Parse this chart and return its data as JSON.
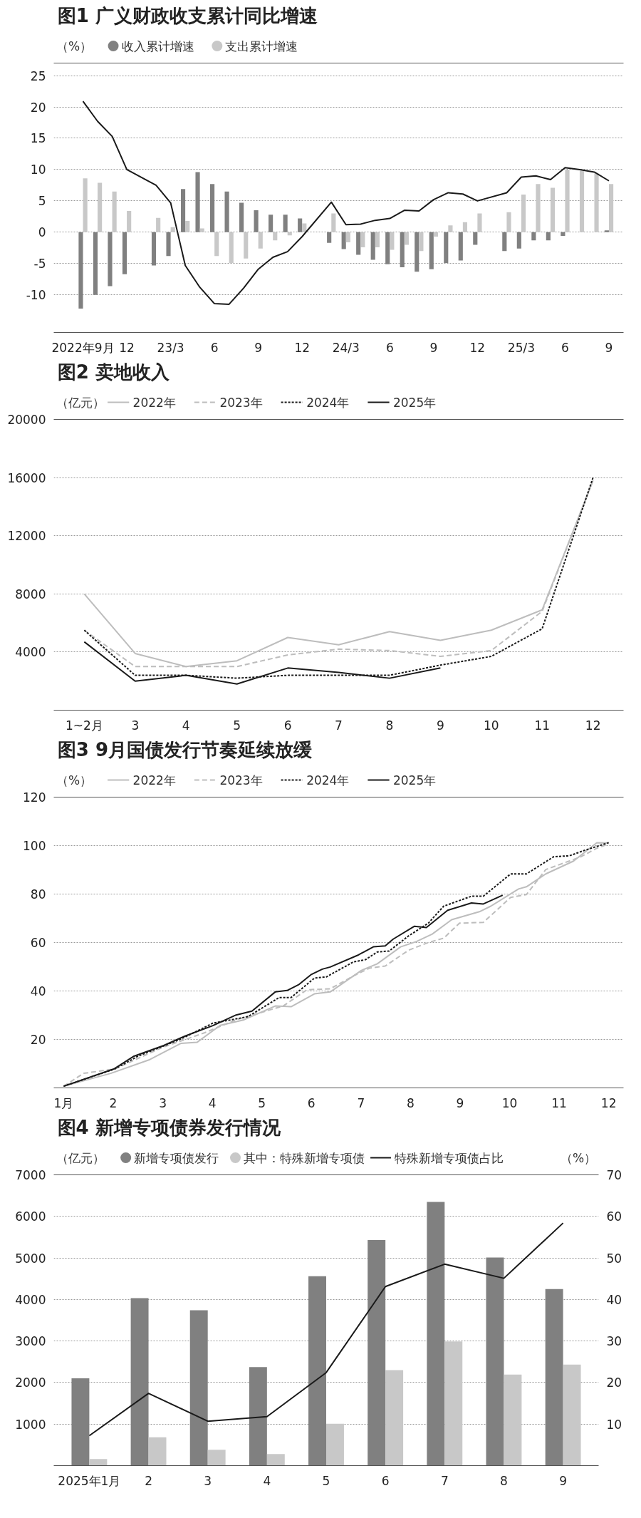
{
  "chart_data": [
    {
      "type": "bar",
      "title": "图1 广义财政收支累计同比增速",
      "ylabel": "（%）",
      "legend": "top left",
      "grid": "y",
      "x": [
        "2022-09",
        "2022-10",
        "2022-11",
        "2022-12",
        "2023-02",
        "2023-03",
        "2023-04",
        "2023-05",
        "2023-06",
        "2023-07",
        "2023-08",
        "2023-09",
        "2023-10",
        "2023-11",
        "2023-12",
        "2024-02",
        "2024-03",
        "2024-04",
        "2024-05",
        "2024-06",
        "2024-07",
        "2024-08",
        "2024-09",
        "2024-10",
        "2024-11",
        "2024-12",
        "2025-02",
        "2025-03",
        "2025-04",
        "2025-05",
        "2025-06",
        "2025-07",
        "2025-08",
        "2025-09"
      ],
      "xlim": [
        "2022-07",
        "2025-10"
      ],
      "xticks": [
        {
          "value": "2022-09",
          "label": "2022年9月"
        },
        {
          "value": "2022-12",
          "label": "12"
        },
        {
          "value": "2023-03",
          "label": "23/3"
        },
        {
          "value": "2023-06",
          "label": "6"
        },
        {
          "value": "2023-09",
          "label": "9"
        },
        {
          "value": "2023-12",
          "label": "12"
        },
        {
          "value": "2024-03",
          "label": "24/3"
        },
        {
          "value": "2024-06",
          "label": "6"
        },
        {
          "value": "2024-09",
          "label": "9"
        },
        {
          "value": "2024-12",
          "label": "12"
        },
        {
          "value": "2025-03",
          "label": "25/3"
        },
        {
          "value": "2025-06",
          "label": "6"
        },
        {
          "value": "2025-09",
          "label": "9"
        }
      ],
      "ylim": [
        -16,
        27
      ],
      "yticks": [
        -10,
        -5,
        0,
        5,
        10,
        15,
        20,
        25
      ],
      "series": [
        {
          "name": "收入累计增速",
          "type": "bar",
          "color": "#808080",
          "values": [
            -12.2,
            -10.0,
            -8.6,
            -6.7,
            -5.3,
            -3.8,
            6.9,
            9.6,
            7.7,
            6.5,
            4.7,
            3.5,
            2.8,
            2.8,
            2.2,
            -1.7,
            -2.7,
            -3.6,
            -4.4,
            -5.1,
            -5.6,
            -6.3,
            -5.9,
            -4.9,
            -4.5,
            -2.0,
            -3.0,
            -2.6,
            -1.3,
            -1.3,
            -0.6,
            0,
            0,
            0.3
          ]
        },
        {
          "name": "支出累计增速",
          "type": "bar",
          "color": "#c8c8c8",
          "values": [
            8.6,
            7.9,
            6.5,
            3.4,
            2.3,
            0.8,
            1.8,
            0.6,
            -3.8,
            -4.9,
            -4.2,
            -2.6,
            -1.3,
            -0.5,
            1.4,
            3.0,
            -1.6,
            -2.4,
            -2.4,
            -2.8,
            -2.0,
            -3.0,
            -0.7,
            1.1,
            1.6,
            3.0,
            3.2,
            6.0,
            7.7,
            7.1,
            10.0,
            9.8,
            9.4,
            7.7
          ]
        },
        {
          "type": "line",
          "color": "#1a1a1a",
          "line_style": "solid",
          "values": [
            20.9,
            17.7,
            15.3,
            10.0,
            7.5,
            4.7,
            -5.3,
            -8.8,
            -11.4,
            -11.5,
            -8.9,
            -5.9,
            -4.0,
            -3.1,
            -0.7,
            4.8,
            1.2,
            1.3,
            1.9,
            2.2,
            3.5,
            3.4,
            5.2,
            6.3,
            6.1,
            5.0,
            6.3,
            8.8,
            9.0,
            8.4,
            10.3,
            10.0,
            9.6,
            8.2
          ]
        }
      ]
    },
    {
      "type": "line",
      "title": "图2 卖地收入",
      "ylabel": "（亿元）",
      "legend": "top left",
      "grid": "y",
      "categories": [
        "1~2月",
        "3",
        "4",
        "5",
        "6",
        "7",
        "8",
        "9",
        "10",
        "11",
        "12"
      ],
      "ylim": [
        0,
        20000
      ],
      "yticks": [
        4000,
        8000,
        12000,
        16000,
        20000
      ],
      "series": [
        {
          "name": "2022年",
          "color": "#bdbdbd",
          "line_style": "solid",
          "values": [
            8000,
            3900,
            3000,
            3400,
            5000,
            4500,
            5400,
            4800,
            5500,
            6900,
            15800
          ]
        },
        {
          "name": "2023年",
          "color": "#bdbdbd",
          "line_style": "dashed",
          "values": [
            5500,
            3000,
            3000,
            3000,
            3800,
            4200,
            4100,
            3700,
            4100,
            6800,
            15800
          ]
        },
        {
          "name": "2024年",
          "color": "#1a1a1a",
          "line_style": "dotted",
          "values": [
            5500,
            2400,
            2400,
            2200,
            2400,
            2400,
            2400,
            3100,
            3700,
            5600,
            16000
          ]
        },
        {
          "name": "2025年",
          "color": "#1a1a1a",
          "line_style": "solid",
          "values": [
            4700,
            2000,
            2400,
            1800,
            2900,
            2600,
            2200,
            2900,
            null,
            null,
            null
          ]
        }
      ]
    },
    {
      "type": "line",
      "title": "图3 9月国债发行节奏延续放缓",
      "ylabel": "（%）",
      "legend": "top left",
      "grid": "y",
      "xlim": [
        0.8,
        12.3
      ],
      "xticks": [
        {
          "value": 1,
          "label": "1月"
        },
        2,
        3,
        4,
        5,
        6,
        7,
        8,
        9,
        10,
        11,
        12
      ],
      "ylim": [
        0,
        120
      ],
      "yticks": [
        20,
        40,
        60,
        80,
        100,
        120
      ],
      "series": [
        {
          "name": "2022年",
          "color": "#bdbdbd",
          "line_style": "solid",
          "x": [
            1.0,
            1.95,
            2.74,
            3.37,
            3.69,
            4.16,
            4.64,
            5.27,
            5.59,
            6.06,
            6.38,
            7.01,
            7.33,
            7.8,
            8.12,
            8.44,
            8.83,
            9.39,
            9.62,
            10.18,
            10.34,
            10.73,
            11.29,
            11.76,
            12.0
          ],
          "values": [
            0.7,
            6.0,
            11.7,
            18.4,
            18.8,
            25.8,
            28.1,
            33.8,
            33.5,
            38.8,
            39.6,
            48.5,
            51.2,
            58.2,
            60.4,
            63.5,
            69.4,
            72.7,
            75.0,
            82.1,
            83.0,
            88.3,
            93.6,
            101.2,
            101.1
          ]
        },
        {
          "name": "2023年",
          "color": "#bdbdbd",
          "line_style": "dashed",
          "x": [
            1.0,
            1.4,
            2.03,
            2.98,
            3.85,
            4.48,
            5.43,
            5.91,
            6.38,
            6.85,
            7.17,
            7.49,
            7.96,
            8.36,
            8.67,
            8.99,
            9.47,
            10.02,
            10.34,
            10.73,
            11.44,
            11.76,
            12.0
          ],
          "values": [
            0.7,
            6.0,
            7.8,
            16.6,
            22.8,
            28.1,
            33.8,
            40.5,
            40.9,
            46.2,
            49.4,
            50.3,
            56.8,
            60.0,
            61.8,
            68.0,
            68.3,
            78.6,
            79.8,
            90.1,
            95.4,
            98.9,
            100.7
          ]
        },
        {
          "name": "2024年",
          "color": "#1a1a1a",
          "line_style": "dotted",
          "x": [
            1.0,
            2.03,
            2.5,
            3.37,
            4.01,
            4.72,
            5.35,
            5.59,
            6.06,
            6.3,
            6.54,
            6.85,
            7.09,
            7.33,
            7.57,
            7.96,
            8.36,
            8.67,
            9.23,
            9.47,
            10.02,
            10.34,
            10.89,
            11.21,
            11.52,
            12.0
          ],
          "values": [
            0.7,
            7.8,
            13.1,
            20.2,
            26.7,
            29.4,
            37.3,
            37.3,
            45.3,
            45.8,
            48.5,
            52.0,
            52.9,
            56.1,
            56.5,
            62.7,
            68.0,
            75.0,
            79.1,
            79.1,
            88.3,
            88.3,
            95.4,
            95.8,
            98.1,
            101.2
          ]
        },
        {
          "name": "2025年",
          "color": "#1a1a1a",
          "line_style": "solid",
          "x": [
            1.0,
            2.01,
            2.42,
            3.02,
            3.45,
            4.01,
            4.48,
            4.8,
            5.27,
            5.51,
            5.75,
            5.99,
            6.22,
            6.38,
            6.93,
            7.25,
            7.49,
            7.65,
            8.08,
            8.32,
            8.75,
            9.23,
            9.47,
            9.86
          ],
          "values": [
            0.7,
            7.8,
            13.1,
            17.5,
            21.4,
            25.7,
            30.1,
            31.7,
            39.6,
            40.2,
            42.7,
            46.7,
            49.0,
            49.9,
            54.7,
            58.2,
            58.6,
            61.4,
            66.7,
            66.2,
            73.3,
            76.3,
            75.9,
            79.5
          ]
        }
      ]
    },
    {
      "type": "bar",
      "title": "图4 新增专项债券发行情况",
      "ylabel": "（亿元）",
      "y2label": "（%）",
      "legend": "top",
      "grid": "y",
      "categories": [
        "2025年1月",
        "2",
        "3",
        "4",
        "5",
        "6",
        "7",
        "8",
        "9"
      ],
      "ylim": [
        0,
        7000
      ],
      "yticks": [
        1000,
        2000,
        3000,
        4000,
        5000,
        6000,
        7000
      ],
      "y2lim": [
        0,
        70
      ],
      "y2ticks": [
        10,
        20,
        30,
        40,
        50,
        60,
        70
      ],
      "series": [
        {
          "name": "新增专项债发行",
          "type": "bar",
          "color": "#808080",
          "values": [
            2100,
            4030,
            3740,
            2370,
            4560,
            5430,
            6350,
            5010,
            4250
          ]
        },
        {
          "name": "其中：特殊新增专项债",
          "type": "bar",
          "color": "#c8c8c8",
          "values": [
            160,
            680,
            380,
            280,
            1010,
            2300,
            2990,
            2190,
            2430
          ]
        },
        {
          "name": "特殊新增专项债占比",
          "type": "line",
          "axis": "y2",
          "color": "#1a1a1a",
          "line_style": "solid",
          "values": [
            7.2,
            17.4,
            10.7,
            11.8,
            22.4,
            43.1,
            48.5,
            45.1,
            58.4
          ]
        }
      ]
    }
  ]
}
